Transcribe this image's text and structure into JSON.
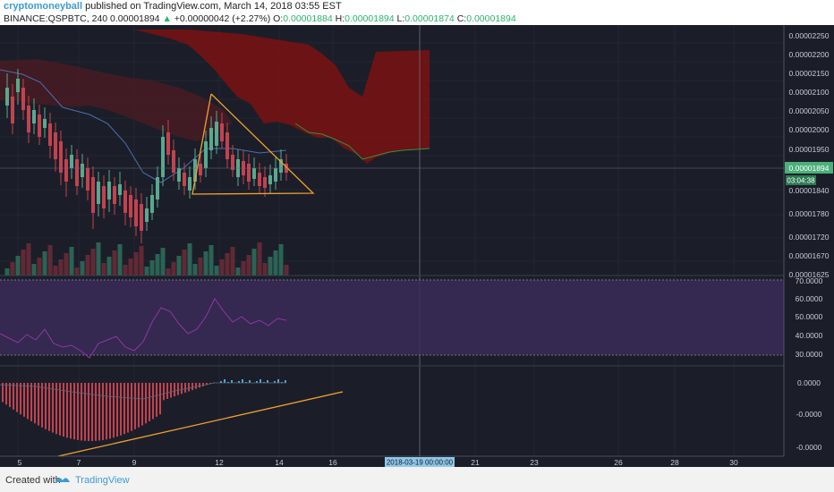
{
  "header": {
    "author": "cryptomoneyball",
    "publish_text": " published on TradingView.com, March 14, 2018 03:55 EST",
    "symbol": "BINANCE:QSPBTC, 240",
    "last": "0.00001894",
    "change": "+0.00000042 (+2.27%)",
    "open_label": "O:",
    "open": "0.00001884",
    "high_label": "H:",
    "high": "0.00001894",
    "low_label": "L:",
    "low": "0.00001874",
    "close_label": "C:",
    "close": "0.00001894"
  },
  "price_axis": {
    "ticks": [
      "0.00002250",
      "0.00002200",
      "0.00002150",
      "0.00002100",
      "0.00002050",
      "0.00002000",
      "0.00001950",
      "0.00001840",
      "0.00001780",
      "0.00001720",
      "0.00001670",
      "0.00001625"
    ],
    "current_price": "0.00001894",
    "countdown": "03:04:38"
  },
  "rsi_axis": {
    "ticks": [
      "70.0000",
      "60.0000",
      "50.0000",
      "40.0000",
      "30.0000"
    ]
  },
  "macd_axis": {
    "ticks": [
      "0.0000",
      "-0.0000",
      "-0.0000"
    ]
  },
  "time_axis": {
    "labels": [
      "5",
      "7",
      "9",
      "12",
      "14",
      "16",
      "21",
      "23",
      "26",
      "28",
      "30"
    ],
    "crosshair_label": "2018-03-19 00:00:00"
  },
  "footer": {
    "created_with": "Created with",
    "brand": "TradingView"
  },
  "colors": {
    "background": "#1b1e28",
    "candle_up": "#59a88f",
    "candle_down": "#c3424f",
    "cloud": "#7a1212",
    "triangle": "#f0a030",
    "rsi_band": "#3a2a58",
    "accent": "#3d9bd3"
  }
}
